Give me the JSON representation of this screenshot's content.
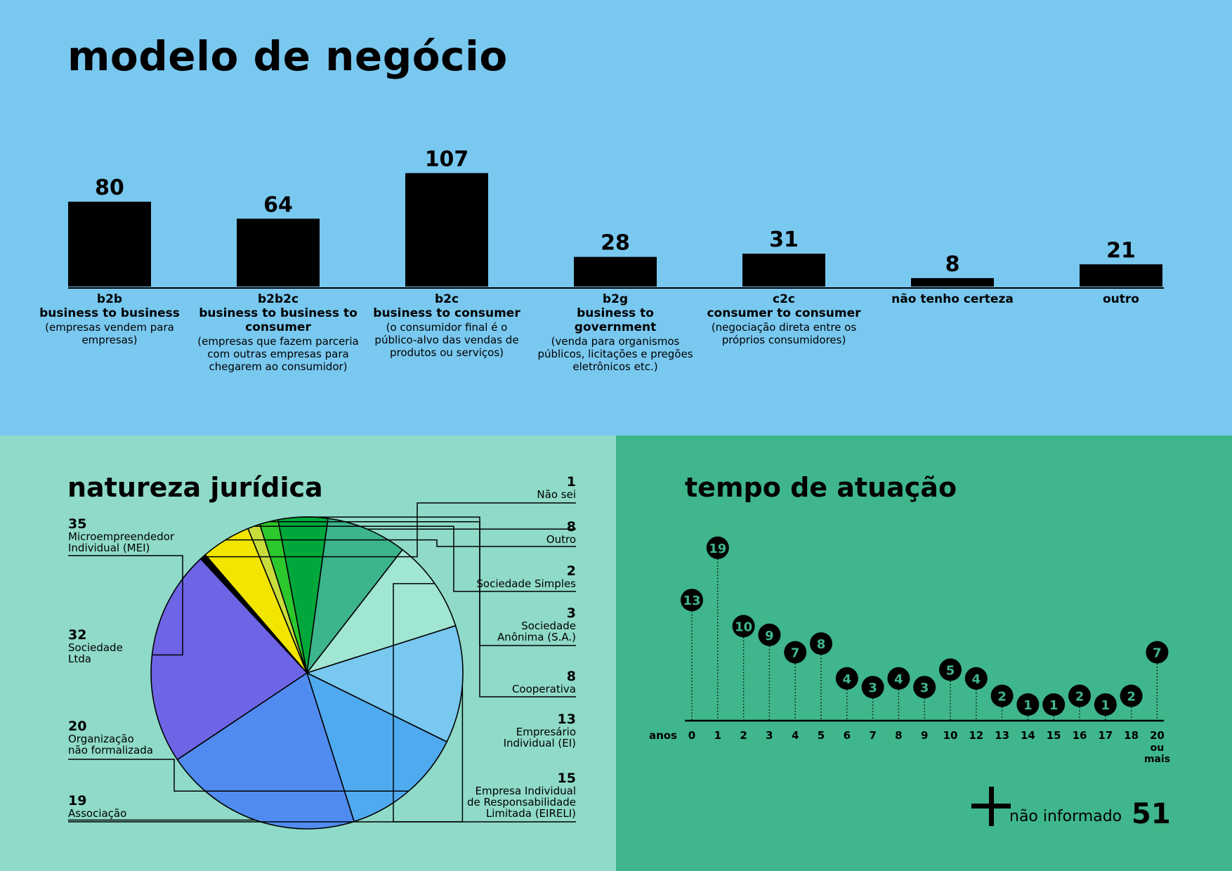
{
  "colors": {
    "top_bg": "#79c8ef",
    "left_bg": "#8fdac8",
    "right_bg": "#3fb68b",
    "ink": "#000000"
  },
  "modelo": {
    "title": "modelo de negócio",
    "chart_data": {
      "type": "bar",
      "categories": [
        {
          "code": "b2b",
          "name": "business to business",
          "desc": "(empresas vendem para empresas)"
        },
        {
          "code": "b2b2c",
          "name": "business to business to consumer",
          "desc": "(empresas que fazem parceria com outras empresas para chegarem ao consumidor)"
        },
        {
          "code": "b2c",
          "name": "business to consumer",
          "desc": "(o consumidor final é o público-alvo das vendas de produtos ou serviços)"
        },
        {
          "code": "b2g",
          "name": "business to government",
          "desc": "(venda para organismos públicos, licitações e pregões eletrônicos etc.)"
        },
        {
          "code": "c2c",
          "name": "consumer to consumer",
          "desc": "(negociação direta entre os próprios consumidores)"
        },
        {
          "code": "",
          "name": "não tenho certeza",
          "desc": ""
        },
        {
          "code": "",
          "name": "outro",
          "desc": ""
        }
      ],
      "values": [
        80,
        64,
        107,
        28,
        31,
        8,
        21
      ]
    }
  },
  "natureza": {
    "title": "natureza jurídica",
    "chart_data": {
      "type": "pie",
      "slices": [
        {
          "label": "Não sei",
          "value": 1,
          "color": "#000000"
        },
        {
          "label": "Outro",
          "value": 8,
          "color": "#f2e600"
        },
        {
          "label": "Sociedade Simples",
          "value": 2,
          "color": "#c8dc3c"
        },
        {
          "label": "Sociedade Anônima (S.A.)",
          "value": 3,
          "color": "#2cc82c"
        },
        {
          "label": "Cooperativa",
          "value": 8,
          "color": "#00a83c"
        },
        {
          "label": "Empresário Individual (EI)",
          "value": 13,
          "color": "#3cb48c"
        },
        {
          "label": "Empresa Individual de Responsabilidade Limitada (EIRELI)",
          "value": 15,
          "color": "#a0e6d2"
        },
        {
          "label": "Associação",
          "value": 19,
          "color": "#78c8f0"
        },
        {
          "label": "Organização não formalizada",
          "value": 20,
          "color": "#50aaf0"
        },
        {
          "label": "Sociedade Ltda",
          "value": 32,
          "color": "#508cf0"
        },
        {
          "label": "Microempreendedor Individual (MEI)",
          "value": 35,
          "color": "#6e64e6"
        }
      ]
    },
    "labels_text": [
      "Não sei",
      "Outro",
      "Sociedade Simples",
      "Sociedade\nAnônima (S.A.)",
      "Cooperativa",
      "Empresário\nIndividual (EI)",
      "Empresa Individual\nde Responsabilidade\nLimitada (EIRELI)",
      "Associação",
      "Organização\nnão formalizada",
      "Sociedade\nLtda",
      "Microempreendedor\nIndividual (MEI)"
    ]
  },
  "tempo": {
    "title": "tempo de atuação",
    "chart_data": {
      "type": "scatter",
      "xlabel": "anos",
      "x": [
        "0",
        "1",
        "2",
        "3",
        "4",
        "5",
        "6",
        "7",
        "8",
        "9",
        "10",
        "12",
        "13",
        "14",
        "15",
        "16",
        "17",
        "18",
        "20 ou mais"
      ],
      "tick_labels": [
        "0",
        "1",
        "2",
        "3",
        "4",
        "5",
        "6",
        "7",
        "8",
        "9",
        "10",
        "12",
        "13",
        "14",
        "15",
        "16",
        "17",
        "18",
        "20"
      ],
      "tick_extra": "ou mais",
      "values": [
        13,
        19,
        10,
        9,
        7,
        8,
        4,
        3,
        4,
        3,
        5,
        4,
        2,
        1,
        1,
        2,
        1,
        2,
        7
      ],
      "value_labels": [
        "13",
        "19",
        "10",
        "9",
        "7",
        "8",
        "4",
        "3",
        "4",
        "3",
        "5",
        "4",
        "2",
        "1",
        "1",
        "2",
        "1",
        "2",
        "7"
      ]
    },
    "not_informed": {
      "label": "não informado",
      "value": "51"
    }
  }
}
